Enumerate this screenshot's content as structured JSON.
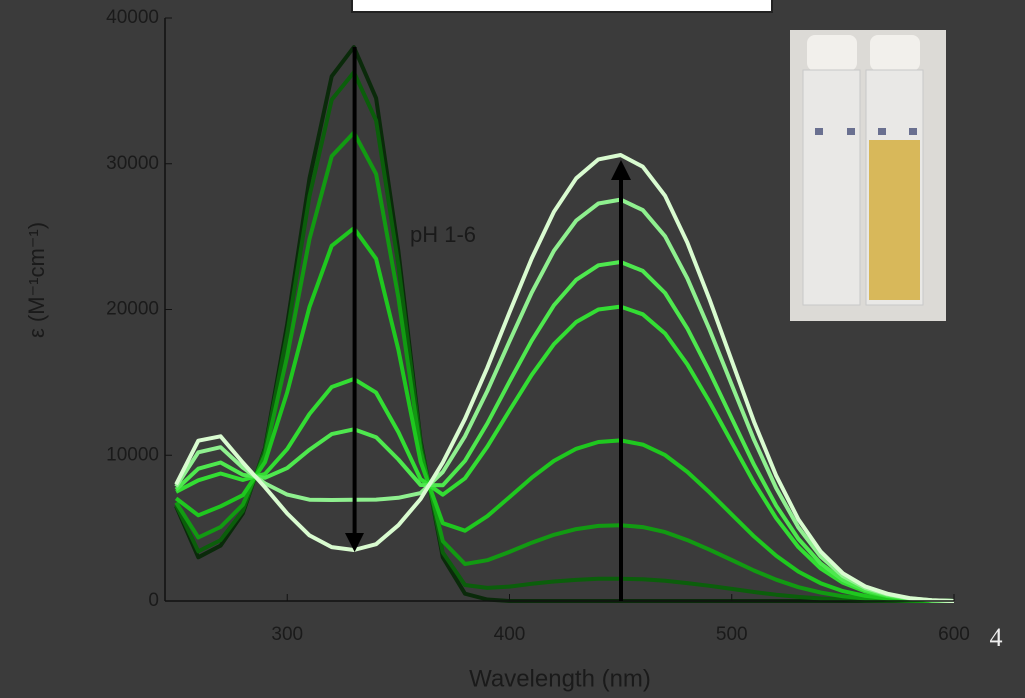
{
  "chart_data": {
    "type": "line",
    "x_label": "Wavelength (nm)",
    "y_label": "ε (M⁻¹cm⁻¹)",
    "annotation": "pH 1-6",
    "x": [
      250,
      260,
      270,
      280,
      290,
      300,
      310,
      320,
      330,
      340,
      350,
      360,
      370,
      380,
      390,
      400,
      410,
      420,
      430,
      440,
      450,
      460,
      470,
      480,
      490,
      500,
      510,
      520,
      530,
      540,
      550,
      560,
      570,
      580,
      590,
      600
    ],
    "series": [
      {
        "color": "#0a2a0a",
        "values": [
          6500,
          3000,
          3800,
          6000,
          10500,
          19000,
          29000,
          36000,
          38000,
          34500,
          24000,
          11000,
          3000,
          500,
          100,
          0,
          0,
          0,
          0,
          0,
          0,
          0,
          0,
          0,
          0,
          0,
          0,
          0,
          0,
          0,
          0,
          0,
          0,
          0,
          0,
          0
        ]
      },
      {
        "color": "#0b5e0b",
        "values": [
          6580,
          3400,
          4180,
          6180,
          10370,
          18350,
          27780,
          34390,
          36280,
          32970,
          23060,
          10800,
          3330,
          1100,
          900,
          990,
          1180,
          1340,
          1450,
          1520,
          1530,
          1490,
          1390,
          1230,
          1040,
          830,
          620,
          430,
          280,
          170,
          100,
          50,
          30,
          10,
          0,
          0
        ]
      },
      {
        "color": "#129a12",
        "values": [
          6760,
          4360,
          5080,
          6600,
          10040,
          16790,
          24840,
          30510,
          32140,
          29300,
          20800,
          10320,
          4110,
          2540,
          2800,
          3370,
          4000,
          4540,
          4930,
          5150,
          5200,
          5070,
          4730,
          4180,
          3520,
          2810,
          2090,
          1460,
          950,
          580,
          320,
          170,
          90,
          30,
          10,
          0
        ]
      },
      {
        "color": "#1fc81f",
        "values": [
          7040,
          5880,
          6500,
          7260,
          9530,
          14320,
          20180,
          24370,
          25580,
          23480,
          17230,
          9560,
          5340,
          4820,
          5820,
          7130,
          8460,
          9610,
          10440,
          10910,
          11020,
          10730,
          10010,
          8860,
          7450,
          5940,
          4430,
          3100,
          2020,
          1220,
          680,
          360,
          180,
          70,
          20,
          0
        ]
      },
      {
        "color": "#33dd33",
        "values": [
          7490,
          8280,
          8750,
          8310,
          8720,
          10420,
          12830,
          14680,
          15230,
          14300,
          11590,
          8360,
          7290,
          8420,
          10590,
          13070,
          15510,
          17620,
          19140,
          20000,
          20200,
          19670,
          18350,
          16240,
          13660,
          10890,
          8120,
          5680,
          3700,
          2240,
          1250,
          660,
          330,
          130,
          30,
          0
        ]
      },
      {
        "color": "#4ee84e",
        "values": [
          7640,
          9080,
          9500,
          8660,
          8450,
          9120,
          10380,
          11450,
          11780,
          11240,
          9710,
          7960,
          7940,
          9620,
          12180,
          15050,
          17860,
          20290,
          22040,
          23030,
          23260,
          22650,
          21130,
          18700,
          15730,
          12540,
          9350,
          6540,
          4260,
          2580,
          1440,
          760,
          380,
          150,
          40,
          0
        ]
      },
      {
        "color": "#8ff08f",
        "values": [
          7850,
          10200,
          10550,
          9150,
          8070,
          7300,
          6950,
          6930,
          6950,
          6960,
          7080,
          7400,
          8850,
          11300,
          14410,
          17820,
          21150,
          24030,
          26100,
          27270,
          27540,
          26820,
          25020,
          22140,
          18630,
          14850,
          11070,
          7740,
          5040,
          3060,
          1710,
          900,
          450,
          180,
          50,
          0
        ]
      },
      {
        "color": "#d9fbd0",
        "values": [
          8000,
          11000,
          11300,
          9500,
          7800,
          6000,
          4500,
          3700,
          3500,
          3900,
          5200,
          7000,
          9500,
          12500,
          16000,
          19800,
          23500,
          26700,
          29000,
          30300,
          30600,
          29800,
          27800,
          24600,
          20700,
          16500,
          12300,
          8600,
          5600,
          3400,
          1900,
          1000,
          500,
          200,
          50,
          0
        ]
      }
    ],
    "xlim": [
      245,
      600
    ],
    "ylim": [
      0,
      40000
    ],
    "xticks": [
      300,
      400,
      500,
      600
    ],
    "yticks": [
      0,
      10000,
      20000,
      30000,
      40000
    ]
  },
  "page_number": "4"
}
